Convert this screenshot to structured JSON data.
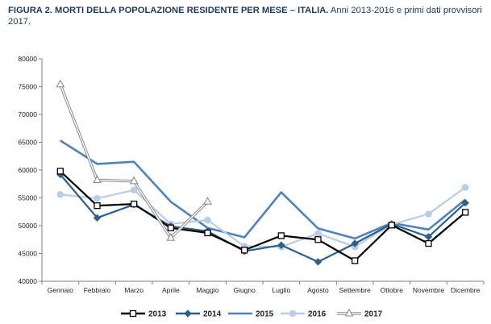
{
  "title_bold": "FIGURA 2. MORTI DELLA POPOLAZIONE RESIDENTE PER MESE – ITALIA.",
  "title_rest": "Anni 2013-2016 e primi dati provvisori 2017.",
  "chart_data": {
    "type": "line",
    "categories": [
      "Gennaio",
      "Febbraio",
      "Marzo",
      "Aprile",
      "Maggio",
      "Giugno",
      "Luglio",
      "Agosto",
      "Settembre",
      "Ottobre",
      "Novembre",
      "Dicembre"
    ],
    "ylim": [
      40000,
      80000
    ],
    "yticks": [
      40000,
      45000,
      50000,
      55000,
      60000,
      65000,
      70000,
      75000,
      80000
    ],
    "grid": false,
    "legend_position": "bottom",
    "series": [
      {
        "name": "2013",
        "color": "#000000",
        "marker": "square",
        "values": [
          59800,
          53600,
          53900,
          49600,
          48700,
          45600,
          48200,
          47500,
          43700,
          50100,
          46800,
          52400
        ]
      },
      {
        "name": "2014",
        "color": "#2e5f8a",
        "marker": "diamond",
        "values": [
          59200,
          51400,
          53800,
          49900,
          49000,
          45400,
          46500,
          43500,
          46800,
          50300,
          48000,
          54100
        ]
      },
      {
        "name": "2015",
        "color": "#4f81bd",
        "marker": "none",
        "values": [
          65300,
          61100,
          61500,
          54300,
          49600,
          47900,
          56000,
          49500,
          47700,
          50500,
          49300,
          54700
        ]
      },
      {
        "name": "2016",
        "color": "#b9cde5",
        "marker": "circle",
        "values": [
          55600,
          54900,
          56400,
          50300,
          51000,
          46300,
          46200,
          48600,
          46200,
          50200,
          52100,
          56900
        ]
      },
      {
        "name": "2017",
        "color": "#8c8c8c",
        "marker": "triangle",
        "values": [
          75400,
          58200,
          58000,
          47800,
          54300,
          null,
          null,
          null,
          null,
          null,
          null,
          null
        ]
      }
    ]
  }
}
